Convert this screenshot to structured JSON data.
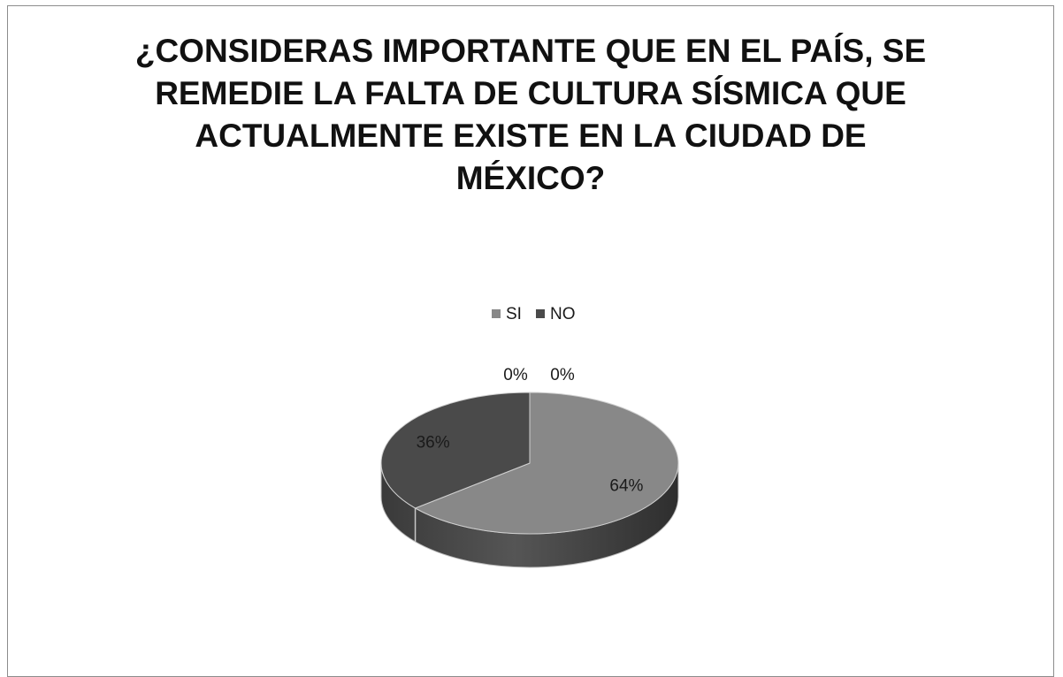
{
  "chart_data": {
    "type": "pie",
    "title_lines": [
      "¿CONSIDERAS IMPORTANTE QUE EN EL PAÍS, SE",
      "REMEDIE LA FALTA DE CULTURA SÍSMICA QUE",
      "ACTUALMENTE EXISTE EN LA CIUDAD DE",
      "MÉXICO?"
    ],
    "legend_position": "top",
    "style": "3d",
    "slices": [
      {
        "label": "SI",
        "value": 64,
        "data_label": "64%",
        "color": "#888888"
      },
      {
        "label": "NO",
        "value": 36,
        "data_label": "36%",
        "color": "#4a4a4a"
      },
      {
        "label": "",
        "value": 0,
        "data_label": "0%",
        "color": "#ffffff"
      },
      {
        "label": "",
        "value": 0,
        "data_label": "0%",
        "color": "#ffffff"
      }
    ],
    "legend": [
      {
        "label": "SI",
        "color": "#888888"
      },
      {
        "label": "NO",
        "color": "#4a4a4a"
      }
    ]
  }
}
